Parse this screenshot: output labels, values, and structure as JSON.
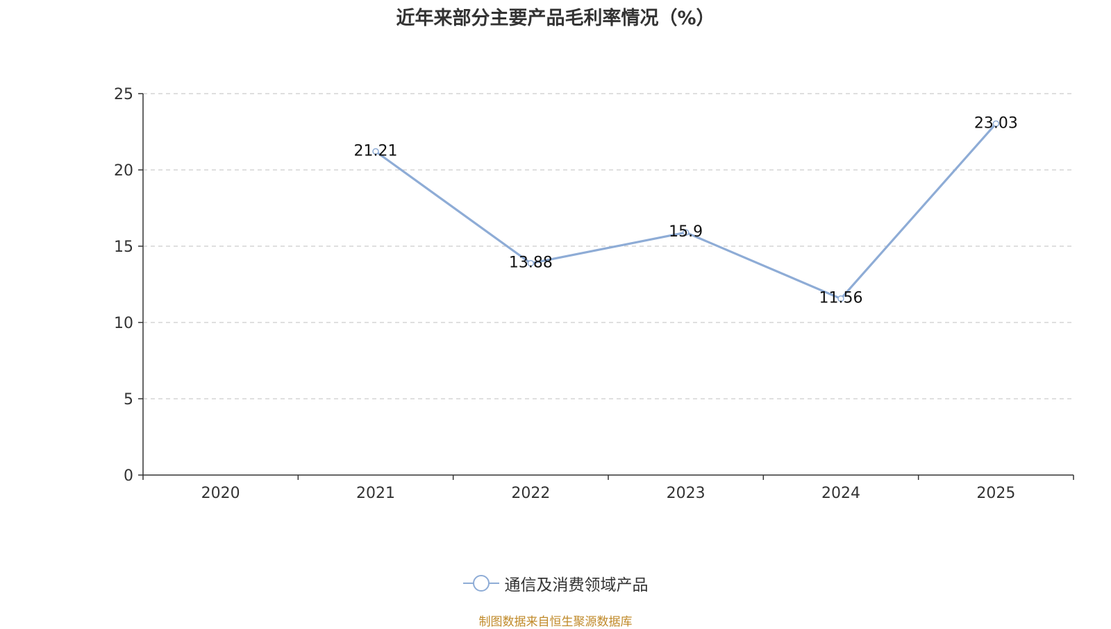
{
  "chart_data": {
    "type": "line",
    "title": "近年来部分主要产品毛利率情况（%）",
    "xlabel": "",
    "ylabel": "",
    "categories": [
      "2020",
      "2021",
      "2022",
      "2023",
      "2024",
      "2025"
    ],
    "series": [
      {
        "name": "通信及消费领域产品",
        "values": [
          null,
          21.21,
          13.88,
          15.9,
          11.56,
          23.03
        ],
        "labels": [
          "",
          "21.21",
          "13.88",
          "15.9",
          "11.56",
          "23.03"
        ],
        "color": "#8eacd6"
      }
    ],
    "ylim": [
      0,
      25
    ],
    "yticks": [
      "0",
      "5",
      "10",
      "15",
      "20",
      "25"
    ],
    "grid": true,
    "legend": "bottom-center"
  },
  "footer": {
    "source_note": "制图数据来自恒生聚源数据库"
  }
}
